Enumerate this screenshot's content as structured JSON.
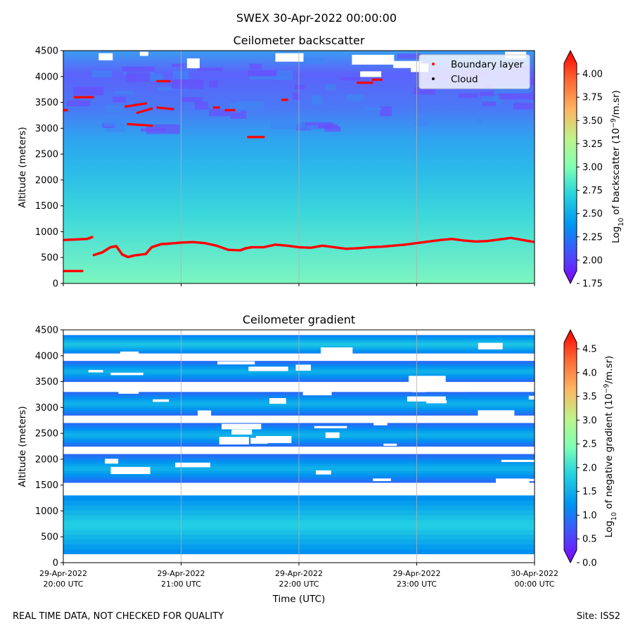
{
  "figure": {
    "suptitle": "SWEX 30-Apr-2022 00:00:00",
    "footer_left": "REAL TIME DATA, NOT CHECKED FOR QUALITY",
    "footer_right": "Site: ISS2",
    "xlabel": "Time (UTC)"
  },
  "chart_data": [
    {
      "type": "heatmap",
      "title": "Ceilometer backscatter",
      "ylabel": "Altitude (meters)",
      "ylim": [
        0,
        4500
      ],
      "yticks": [
        "0",
        "500",
        "1000",
        "1500",
        "2000",
        "2500",
        "3000",
        "3500",
        "4000",
        "4500"
      ],
      "xticks_shown": false,
      "colorbar": {
        "label": "Log10 of backscatter (10^-9/m.sr)",
        "range": [
          1.75,
          4.25
        ],
        "ticks": [
          "1.75",
          "2.00",
          "2.25",
          "2.50",
          "2.75",
          "3.00",
          "3.25",
          "3.50",
          "3.75",
          "4.00"
        ]
      },
      "legend": {
        "position": "top-right",
        "entries": [
          "Boundary layer",
          "Cloud"
        ]
      },
      "colors": {
        "boundary_layer": "#ff0000",
        "cloud": "#000000"
      },
      "boundary_layer_main": {
        "t": [
          0,
          0.1,
          0.2,
          0.25,
          0.26,
          0.33,
          0.4,
          0.45,
          0.5,
          0.55,
          0.6,
          0.7,
          0.75,
          0.83,
          0.9,
          1.0,
          1.1,
          1.2,
          1.3,
          1.4,
          1.5,
          1.55,
          1.6,
          1.7,
          1.8,
          1.9,
          2.0,
          2.1,
          2.2,
          2.3,
          2.4,
          2.5,
          2.6,
          2.7,
          2.8,
          2.9,
          3.0,
          3.1,
          3.2,
          3.3,
          3.4,
          3.5,
          3.6,
          3.7,
          3.8,
          3.9,
          4.0
        ],
        "alt": [
          840,
          850,
          860,
          900,
          550,
          600,
          700,
          720,
          560,
          510,
          540,
          570,
          700,
          760,
          770,
          790,
          800,
          780,
          730,
          650,
          640,
          680,
          700,
          700,
          750,
          730,
          700,
          690,
          730,
          700,
          670,
          680,
          700,
          710,
          730,
          750,
          780,
          810,
          840,
          860,
          830,
          810,
          820,
          850,
          880,
          840,
          800
        ]
      },
      "boundary_layer_segments": [
        {
          "t": [
            0.0,
            0.16
          ],
          "alt": [
            240,
            240
          ]
        },
        {
          "t": [
            0.1,
            0.25
          ],
          "alt": [
            3600,
            3600
          ]
        },
        {
          "t": [
            0.0,
            0.03
          ],
          "alt": [
            3350,
            3350
          ]
        },
        {
          "t": [
            0.55,
            0.75
          ],
          "alt": [
            3080,
            3050
          ]
        },
        {
          "t": [
            0.53,
            0.7
          ],
          "alt": [
            3420,
            3480
          ]
        },
        {
          "t": [
            0.63,
            0.75
          ],
          "alt": [
            3300,
            3380
          ]
        },
        {
          "t": [
            0.8,
            0.9
          ],
          "alt": [
            3910,
            3910
          ]
        },
        {
          "t": [
            0.8,
            0.93
          ],
          "alt": [
            3400,
            3370
          ]
        },
        {
          "t": [
            1.28,
            1.32
          ],
          "alt": [
            3400,
            3400
          ]
        },
        {
          "t": [
            1.38,
            1.45
          ],
          "alt": [
            3350,
            3350
          ]
        },
        {
          "t": [
            1.57,
            1.7
          ],
          "alt": [
            2830,
            2830
          ]
        },
        {
          "t": [
            1.86,
            1.9
          ],
          "alt": [
            3550,
            3550
          ]
        },
        {
          "t": [
            2.5,
            2.62
          ],
          "alt": [
            3880,
            3880
          ]
        },
        {
          "t": [
            2.63,
            2.7
          ],
          "alt": [
            3940,
            3940
          ]
        }
      ]
    },
    {
      "type": "heatmap",
      "title": "Ceilometer gradient",
      "ylabel": "Altitude (meters)",
      "ylim": [
        0,
        4500
      ],
      "yticks": [
        "0",
        "500",
        "1000",
        "1500",
        "2000",
        "2500",
        "3000",
        "3500",
        "4000",
        "4500"
      ],
      "xticks": [
        "29-Apr-2022\n20:00 UTC",
        "29-Apr-2022\n21:00 UTC",
        "29-Apr-2022\n22:00 UTC",
        "29-Apr-2022\n23:00 UTC",
        "30-Apr-2022\n00:00 UTC"
      ],
      "xrange_hours": [
        0,
        4
      ],
      "colorbar": {
        "label": "Log10 of negative gradient (10^-9/m.sr)",
        "range": [
          0.0,
          4.9
        ],
        "ticks": [
          "0.0",
          "0.5",
          "1.0",
          "1.5",
          "2.0",
          "2.5",
          "3.0",
          "3.5",
          "4.0",
          "4.5"
        ]
      },
      "bands": [
        {
          "lo": 170,
          "hi": 1300,
          "value": 1.9
        },
        {
          "lo": 1550,
          "hi": 2100,
          "value": 1.6
        },
        {
          "lo": 2250,
          "hi": 2700,
          "value": 1.6
        },
        {
          "lo": 2850,
          "hi": 3300,
          "value": 1.6
        },
        {
          "lo": 3500,
          "hi": 3900,
          "value": 1.6
        },
        {
          "lo": 4050,
          "hi": 4400,
          "value": 1.8
        }
      ]
    }
  ]
}
